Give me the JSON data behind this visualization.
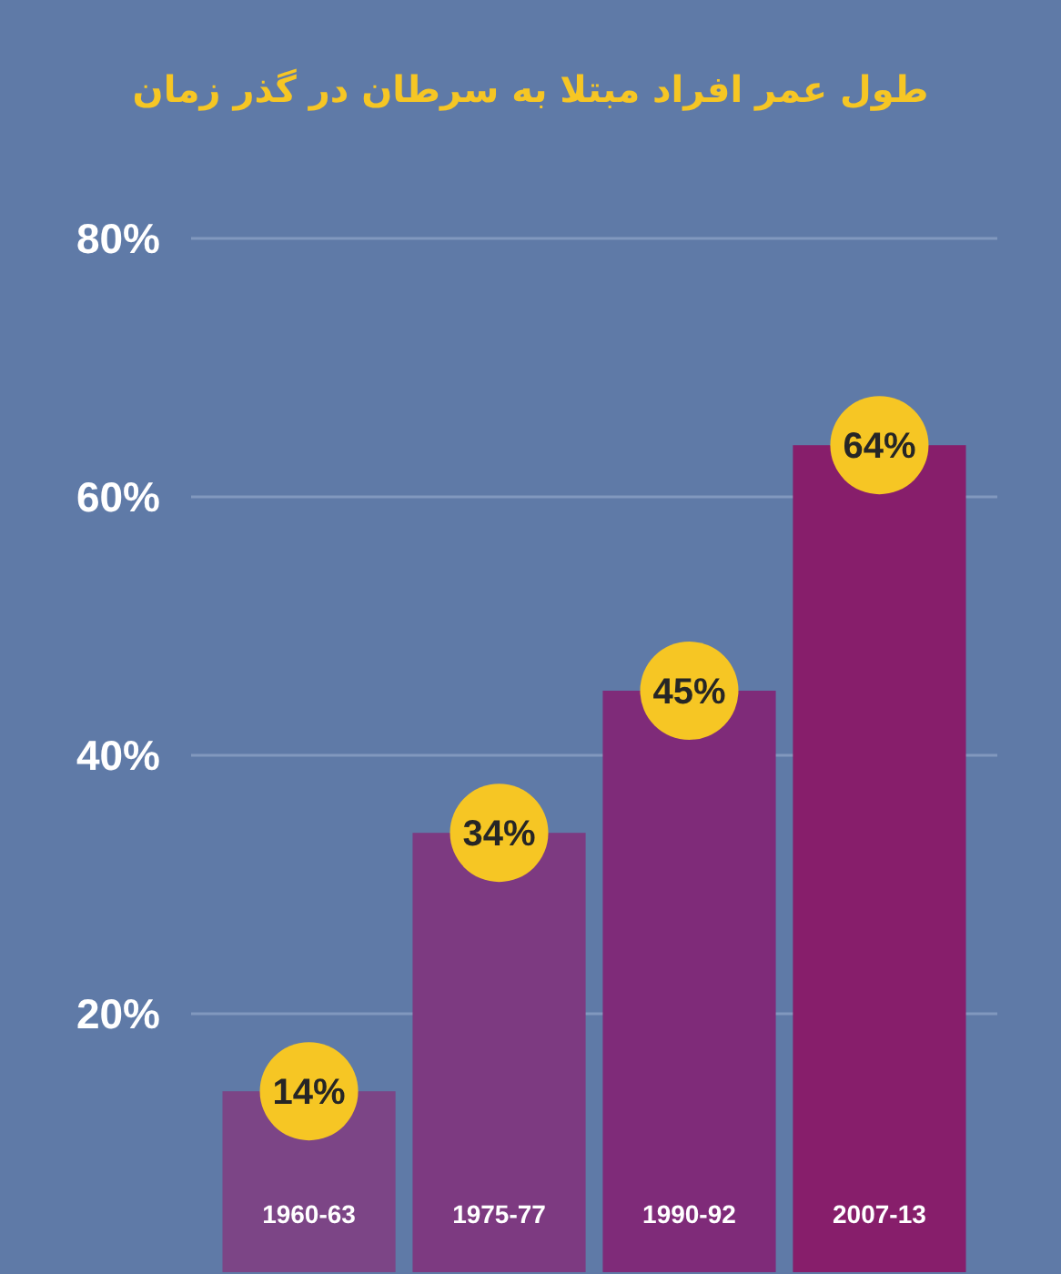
{
  "chart_data": {
    "type": "bar",
    "title": "طول عمر افراد مبتلا به سرطان در گذر زمان",
    "categories": [
      "1960-63",
      "1975-77",
      "1990-92",
      "2007-13"
    ],
    "values": [
      14,
      34,
      45,
      64
    ],
    "colors": [
      "#7c4586",
      "#7d3a81",
      "#7f2b79",
      "#871e6b"
    ],
    "value_labels": [
      "14%",
      "34%",
      "45%",
      "64%"
    ],
    "ylim": [
      0,
      80
    ],
    "yticks": [
      {
        "value": 20,
        "label": "20%"
      },
      {
        "value": 40,
        "label": "40%"
      },
      {
        "value": 60,
        "label": "60%"
      },
      {
        "value": 80,
        "label": "80%"
      }
    ],
    "grid": "y"
  }
}
